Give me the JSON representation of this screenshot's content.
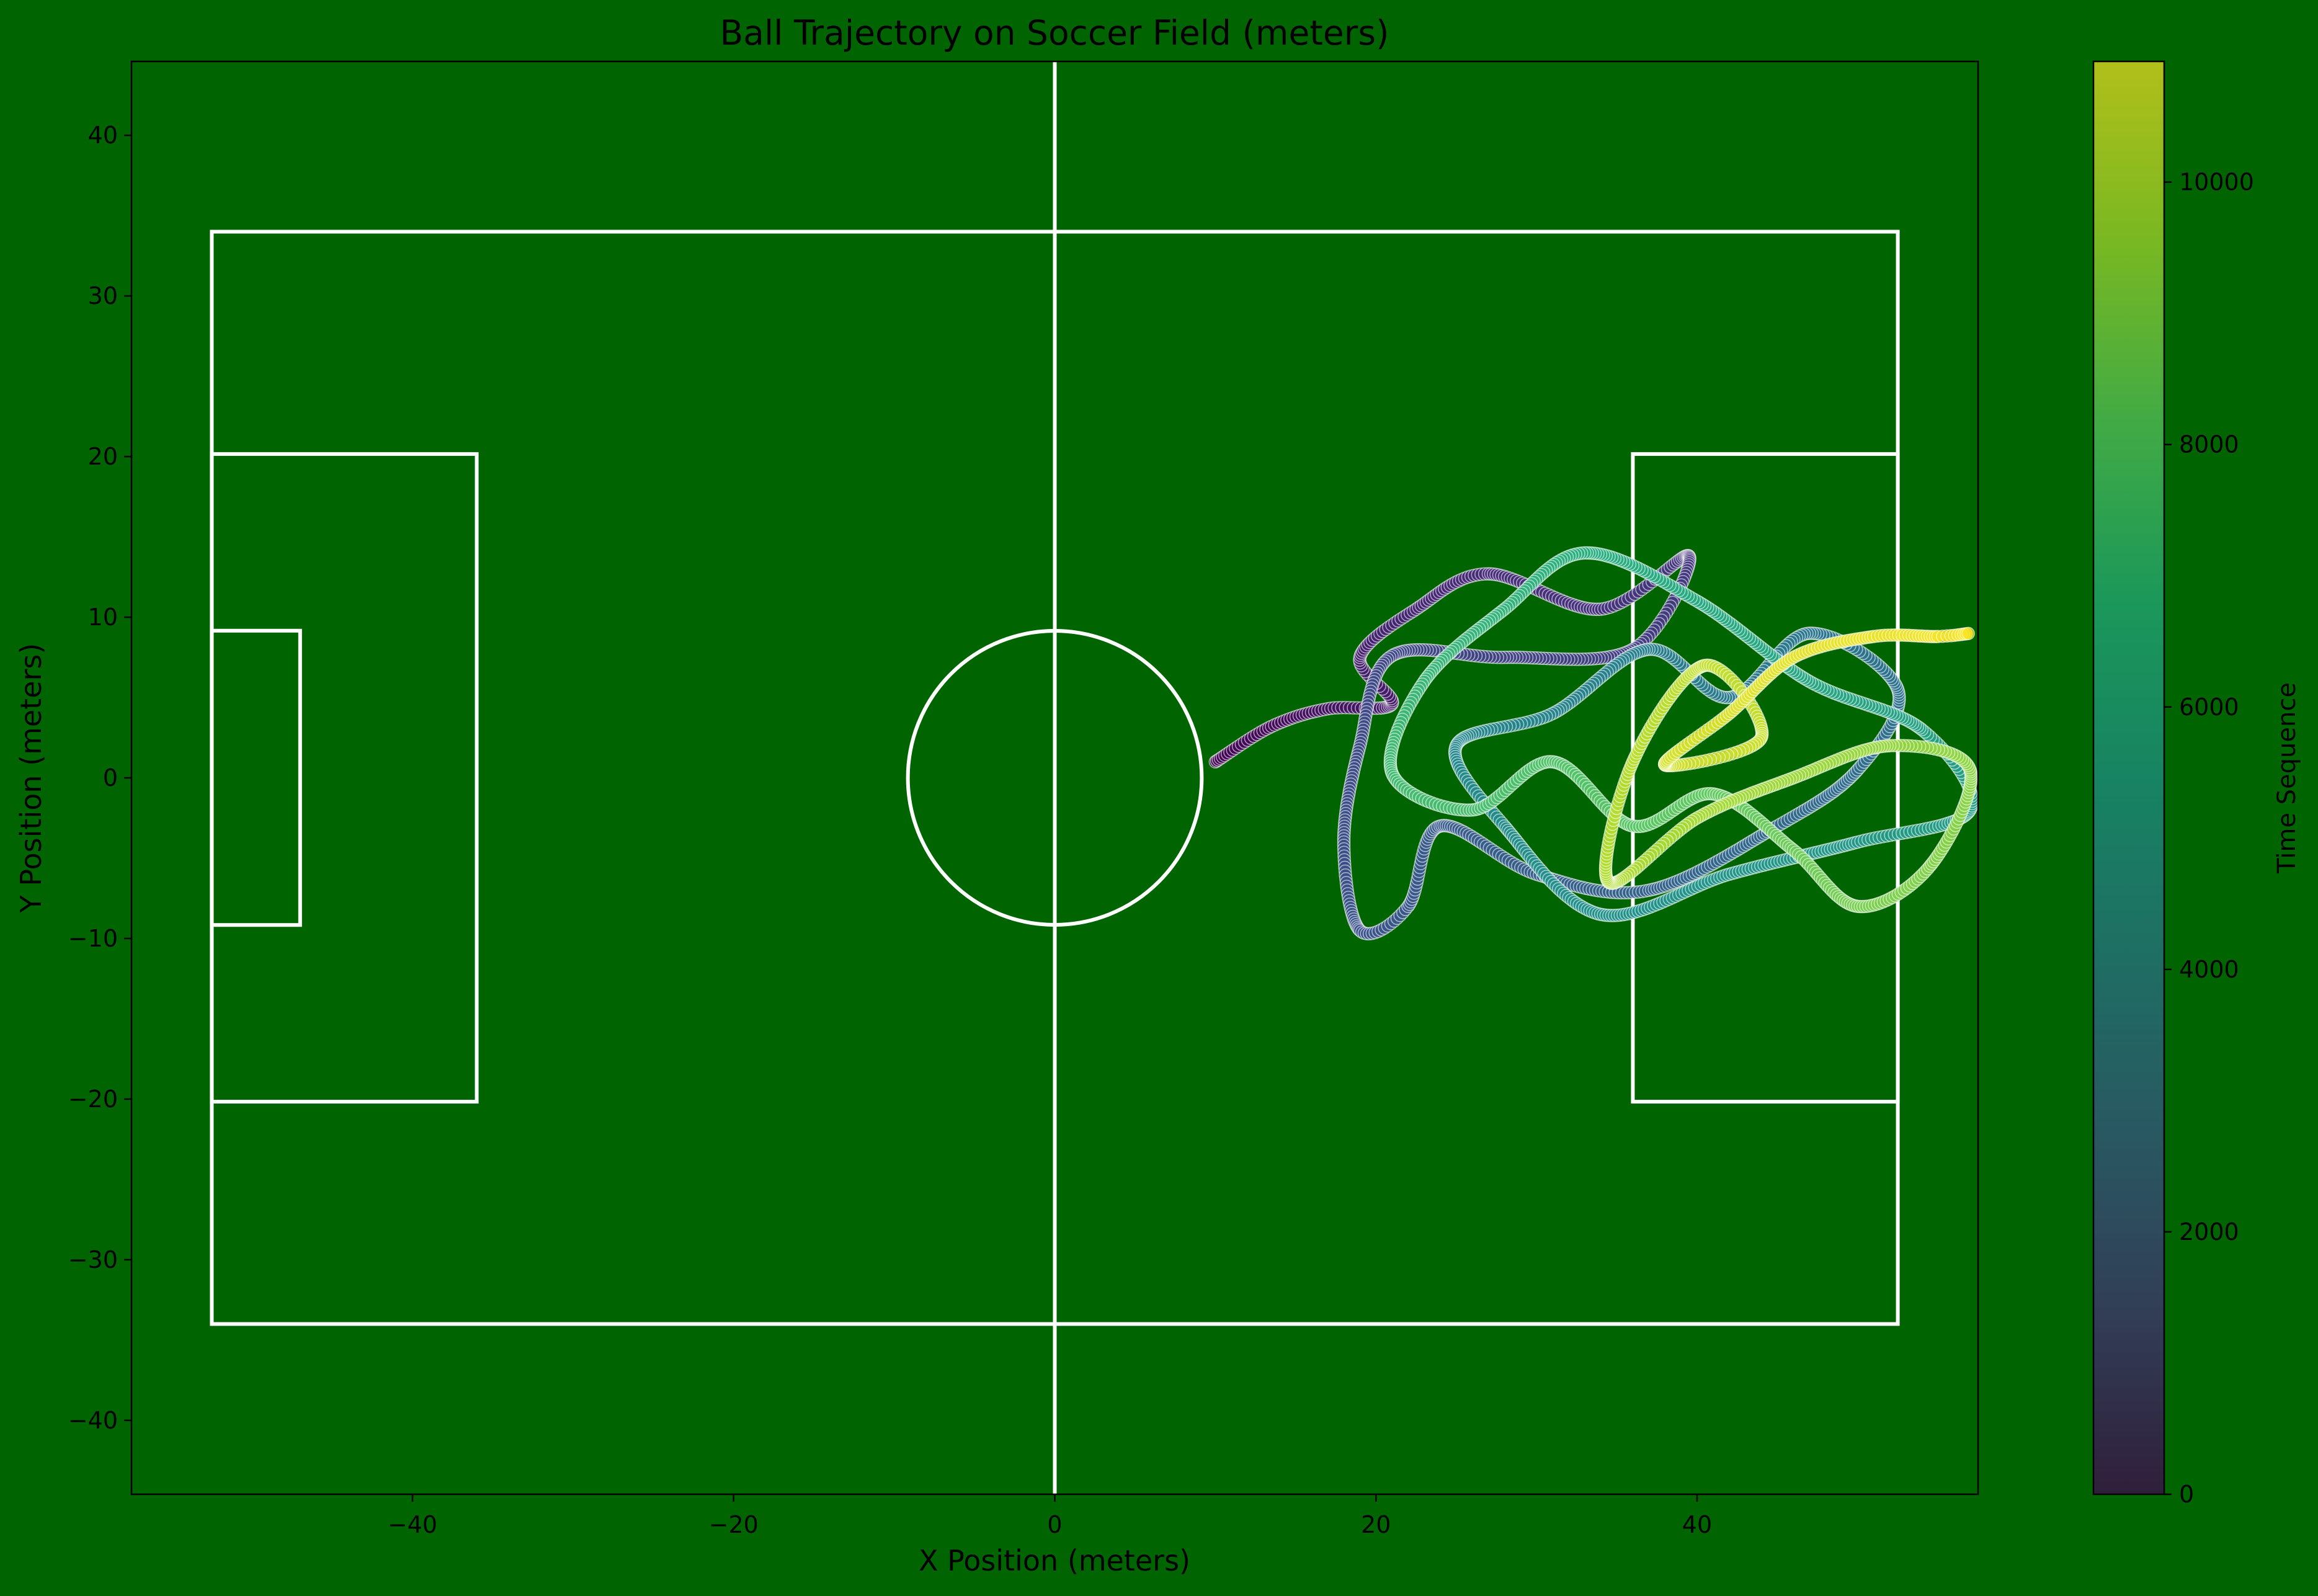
{
  "chart_data": {
    "type": "scatter",
    "title": "Ball Trajectory on Soccer Field (meters)",
    "xlabel": "X Position (meters)",
    "ylabel": "Y Position (meters)",
    "xlim": [
      -57.5,
      57.5
    ],
    "ylim": [
      -44.6,
      44.6
    ],
    "x_ticks": [
      -40,
      -20,
      0,
      20,
      40
    ],
    "y_ticks": [
      -40,
      -30,
      -20,
      -10,
      0,
      10,
      20,
      30,
      40
    ],
    "x_tick_labels": [
      "−40",
      "−20",
      "0",
      "20",
      "40"
    ],
    "y_tick_labels": [
      "−40",
      "−30",
      "−20",
      "−10",
      "0",
      "10",
      "20",
      "30",
      "40"
    ],
    "grid": false,
    "colorbar": {
      "label": "Time Sequence",
      "range": [
        0,
        10920
      ],
      "ticks": [
        0,
        2000,
        4000,
        6000,
        8000,
        10000
      ],
      "tick_labels": [
        "0",
        "2000",
        "4000",
        "6000",
        "8000",
        "10000"
      ],
      "colormap": "viridis",
      "alpha": 0.7
    },
    "field": {
      "length": 105,
      "width": 68,
      "penalty_area_depth": 16.5,
      "penalty_area_half_width": 20.16,
      "goal_area_depth": 5.5,
      "goal_area_half_width": 9.16,
      "center_circle_radius": 9.15
    },
    "series": [
      {
        "description_of_anchors": "trajectory points [x, y, time]",
        "points": [
          [
            10.0,
            1.0,
            0
          ],
          [
            13.5,
            3.2,
            250
          ],
          [
            17.0,
            4.3,
            500
          ],
          [
            21.0,
            4.6,
            700
          ],
          [
            19.0,
            7.5,
            900
          ],
          [
            22.5,
            10.5,
            1100
          ],
          [
            27.0,
            12.7,
            1300
          ],
          [
            34.0,
            10.5,
            1500
          ],
          [
            39.5,
            13.8,
            1700
          ],
          [
            36.0,
            8.0,
            1900
          ],
          [
            28.0,
            7.5,
            2100
          ],
          [
            21.0,
            7.6,
            2300
          ],
          [
            19.0,
            2.0,
            2450
          ],
          [
            18.0,
            -4.0,
            2600
          ],
          [
            19.0,
            -9.5,
            2750
          ],
          [
            22.0,
            -8.0,
            2900
          ],
          [
            24.0,
            -3.0,
            3050
          ],
          [
            30.0,
            -6.0,
            3250
          ],
          [
            37.0,
            -7.0,
            3450
          ],
          [
            45.0,
            -3.0,
            3650
          ],
          [
            50.0,
            0.5,
            3850
          ],
          [
            52.5,
            5.5,
            4050
          ],
          [
            47.0,
            9.0,
            4250
          ],
          [
            42.0,
            5.0,
            4450
          ],
          [
            37.0,
            8.0,
            4650
          ],
          [
            31.0,
            4.0,
            4850
          ],
          [
            25.0,
            2.0,
            5050
          ],
          [
            28.0,
            -3.0,
            5250
          ],
          [
            34.0,
            -8.5,
            5450
          ],
          [
            42.0,
            -6.0,
            5650
          ],
          [
            50.0,
            -4.0,
            5850
          ],
          [
            57.0,
            -2.0,
            6050
          ],
          [
            54.0,
            3.0,
            6250
          ],
          [
            47.0,
            6.0,
            6450
          ],
          [
            40.0,
            11.0,
            6650
          ],
          [
            33.0,
            14.0,
            6850
          ],
          [
            28.0,
            10.5,
            7050
          ],
          [
            23.0,
            6.0,
            7250
          ],
          [
            21.0,
            0.3,
            7450
          ],
          [
            26.0,
            -2.0,
            7650
          ],
          [
            31.0,
            1.0,
            7850
          ],
          [
            36.0,
            -3.0,
            8050
          ],
          [
            41.0,
            -1.0,
            8250
          ],
          [
            46.0,
            -4.5,
            8450
          ],
          [
            50.0,
            -8.0,
            8650
          ],
          [
            54.5,
            -5.5,
            8850
          ],
          [
            57.0,
            0.5,
            9000
          ],
          [
            52.0,
            2.0,
            9150
          ],
          [
            46.0,
            0.0,
            9300
          ],
          [
            40.0,
            -2.5,
            9450
          ],
          [
            34.5,
            -6.5,
            9600
          ],
          [
            36.0,
            1.0,
            9750
          ],
          [
            40.5,
            7.0,
            9900
          ],
          [
            44.0,
            2.5,
            10050
          ],
          [
            38.0,
            0.8,
            10200
          ],
          [
            42.0,
            4.0,
            10350
          ],
          [
            46.0,
            7.5,
            10500
          ],
          [
            51.0,
            8.8,
            10650
          ],
          [
            55.0,
            8.8,
            10800
          ],
          [
            57.0,
            9.0,
            10920
          ]
        ]
      }
    ]
  }
}
